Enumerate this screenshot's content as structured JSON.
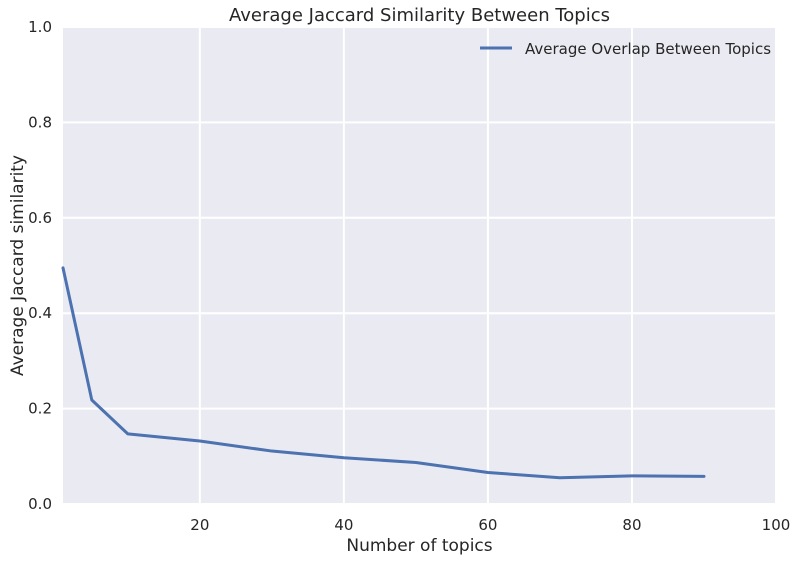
{
  "chart_data": {
    "type": "line",
    "title": "Average Jaccard Similarity Between Topics",
    "xlabel": "Number of topics",
    "ylabel": "Average Jaccard similarity",
    "xlim": [
      1,
      100
    ],
    "ylim": [
      0,
      1.0
    ],
    "xticks": [
      20,
      40,
      60,
      80,
      100
    ],
    "xtick_labels": [
      "20",
      "40",
      "60",
      "80",
      "100"
    ],
    "yticks": [
      0,
      0.2,
      0.4,
      0.6,
      0.8,
      1.0
    ],
    "ytick_labels": [
      "0.0",
      "0.2",
      "0.4",
      "0.6",
      "0.8",
      "1.0"
    ],
    "grid": true,
    "legend_position": "top-right",
    "colors": {
      "background": "#eaeaf2",
      "grid": "#ffffff",
      "line": "#4c72b0"
    },
    "series": [
      {
        "name": "Average Overlap Between Topics",
        "x": [
          1,
          5,
          10,
          20,
          30,
          40,
          50,
          60,
          70,
          80,
          90
        ],
        "y": [
          0.495,
          0.218,
          0.147,
          0.132,
          0.111,
          0.097,
          0.087,
          0.066,
          0.055,
          0.059,
          0.058
        ]
      }
    ]
  }
}
